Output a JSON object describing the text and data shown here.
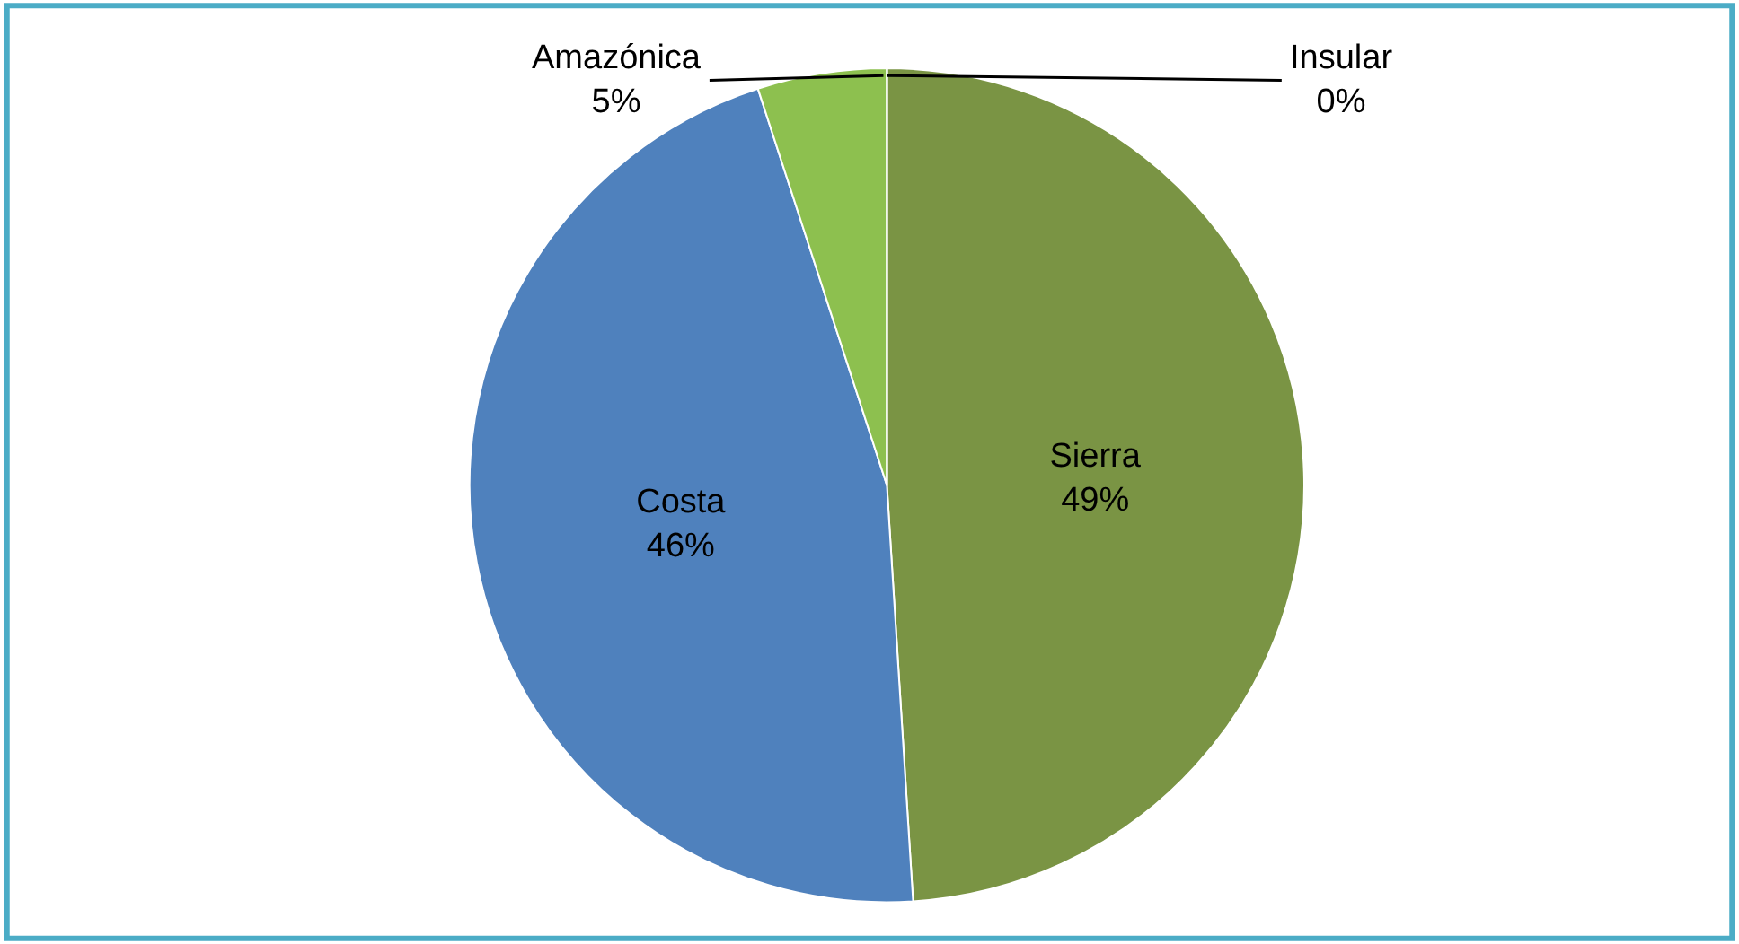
{
  "chart_data": {
    "type": "pie",
    "categories": [
      "Sierra",
      "Costa",
      "Amazónica",
      "Insular"
    ],
    "values": [
      49,
      46,
      5,
      0
    ],
    "value_labels": [
      "49%",
      "46%",
      "5%",
      "0%"
    ],
    "colors": [
      "#7a9444",
      "#4f81bd",
      "#8dc04f",
      "#4bacc6"
    ],
    "legend": false
  }
}
